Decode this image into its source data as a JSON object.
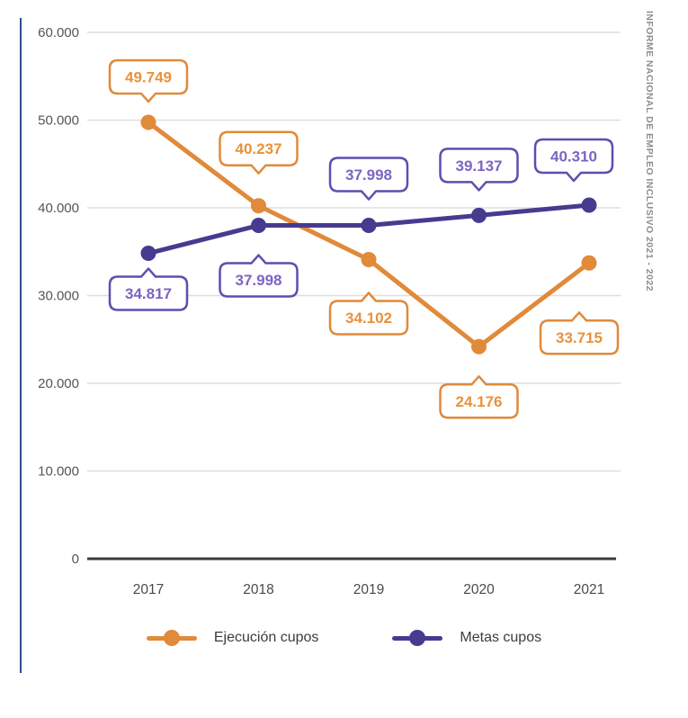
{
  "side_caption": "INFORME NACIONAL DE EMPLEO INCLUSIVO 2021 - 2022",
  "colors": {
    "ejecucion_orange": "#E08A3A",
    "metas_purple": "#453B8F",
    "purple_callout_border": "#5E4EAF",
    "purple_callout_text": "#7C64C3",
    "orange_callout_border": "#E08A3A",
    "orange_callout_text": "#E8923B",
    "gridline": "#DEDEDE",
    "axis_line": "#3B3B3B",
    "tick_text": "#555555",
    "legend_text": "#3C3C3C",
    "left_rule_blue": "#2E4D8E",
    "side_caption_gray": "#8D8D8D",
    "callout_fill": "#FFFFFF"
  },
  "chart_data": {
    "type": "line",
    "title": "",
    "xlabel": "",
    "ylabel": "",
    "categories": [
      "2017",
      "2018",
      "2019",
      "2020",
      "2021"
    ],
    "ylim": [
      0,
      60000
    ],
    "grid": true,
    "legend_position": "bottom",
    "yticks": [
      {
        "label": "60.000",
        "value": 60000
      },
      {
        "label": "50.000",
        "value": 50000
      },
      {
        "label": "40.000",
        "value": 40000
      },
      {
        "label": "30.000",
        "value": 30000
      },
      {
        "label": "20.000",
        "value": 20000
      },
      {
        "label": "10.000",
        "value": 10000
      },
      {
        "label": "0",
        "value": 0
      }
    ],
    "series": [
      {
        "name": "Ejecución cupos",
        "color": "#E08A3A",
        "callout_border": "#E08A3A",
        "callout_text_color": "#E8923B",
        "values": [
          49749,
          40237,
          34102,
          24176,
          33715
        ],
        "labels": [
          "49.749",
          "40.237",
          "34.102",
          "24.176",
          "33.715"
        ],
        "label_layout": [
          {
            "side": "above",
            "offset": 32,
            "dx": 0
          },
          {
            "side": "above",
            "offset": 45,
            "dx": 0
          },
          {
            "side": "below",
            "offset": 46,
            "dx": 0
          },
          {
            "side": "below",
            "offset": 42,
            "dx": 0
          },
          {
            "side": "below",
            "offset": 64,
            "dx": -11
          }
        ]
      },
      {
        "name": "Metas cupos",
        "color": "#453B8F",
        "callout_border": "#5E4EAF",
        "callout_text_color": "#7C64C3",
        "values": [
          34817,
          37998,
          37998,
          39137,
          40310
        ],
        "labels": [
          "34.817",
          "37.998",
          "37.998",
          "39.137",
          "40.310"
        ],
        "label_layout": [
          {
            "side": "below",
            "offset": 26,
            "dx": 0
          },
          {
            "side": "below",
            "offset": 42,
            "dx": 0
          },
          {
            "side": "above",
            "offset": 38,
            "dx": 0
          },
          {
            "side": "above",
            "offset": 37,
            "dx": 0
          },
          {
            "side": "above",
            "offset": 36,
            "dx": -17
          }
        ]
      }
    ]
  }
}
